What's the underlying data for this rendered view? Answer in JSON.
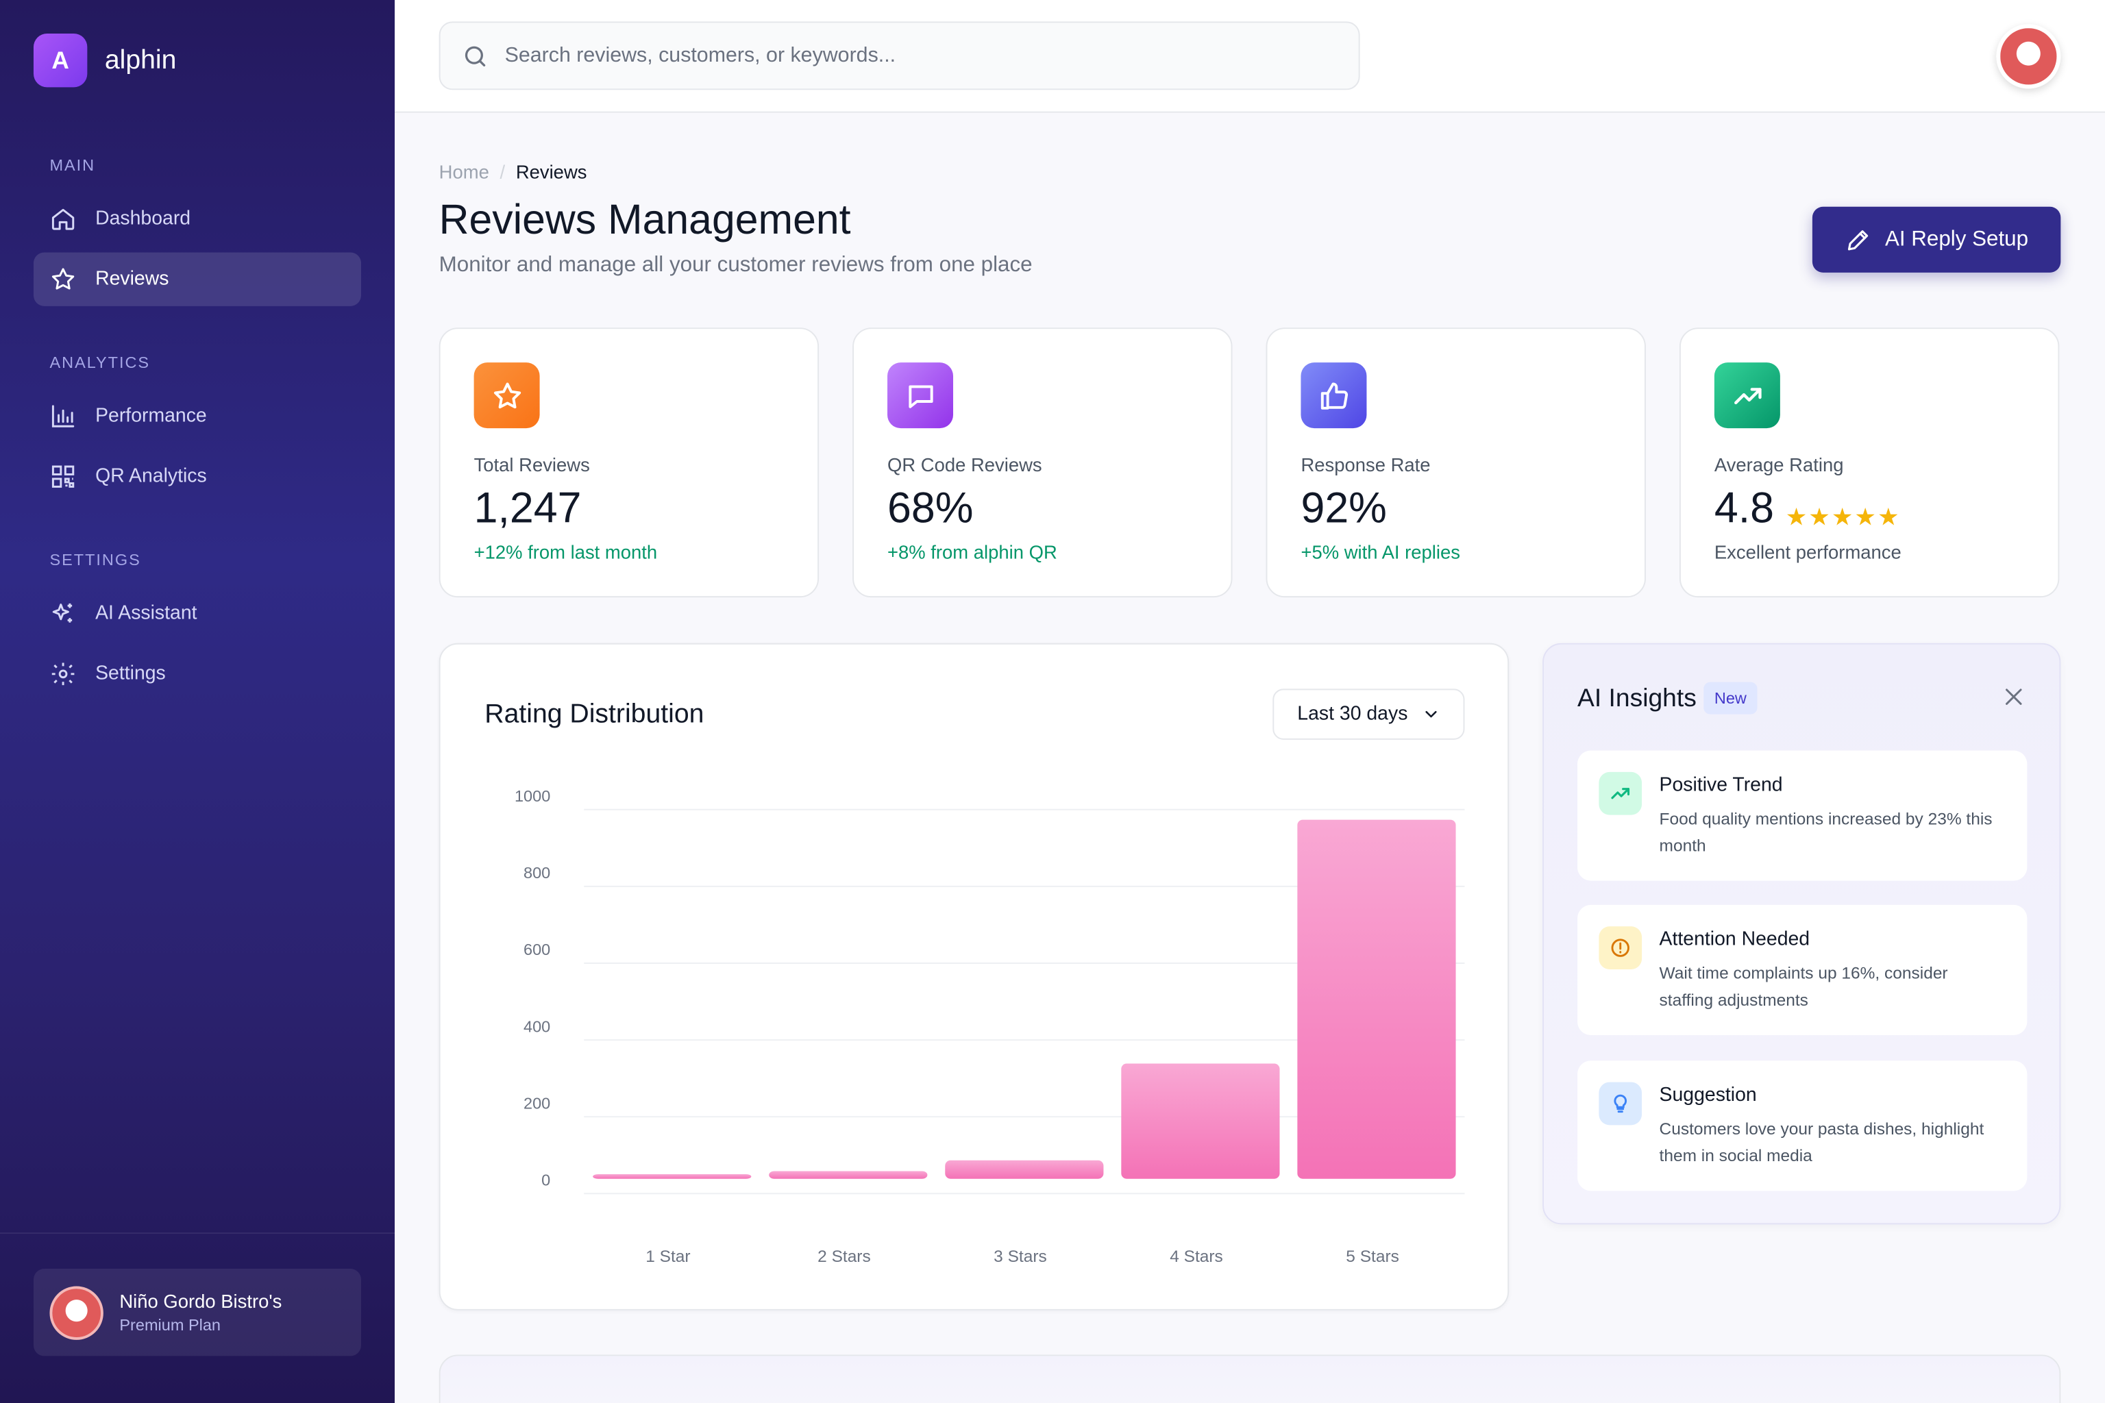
{
  "brand": {
    "letter": "A",
    "name": "alphin"
  },
  "sidebar": {
    "sections": [
      {
        "label": "MAIN"
      },
      {
        "label": "ANALYTICS"
      },
      {
        "label": "SETTINGS"
      }
    ],
    "items": [
      {
        "label": "Dashboard",
        "icon": "home-icon"
      },
      {
        "label": "Reviews",
        "icon": "star-icon",
        "active": true
      },
      {
        "label": "Performance",
        "icon": "bar-chart-icon"
      },
      {
        "label": "QR Analytics",
        "icon": "qr-code-icon"
      },
      {
        "label": "AI Assistant",
        "icon": "sparkle-icon"
      },
      {
        "label": "Settings",
        "icon": "gear-icon"
      }
    ],
    "account": {
      "name": "Niño Gordo Bistro's",
      "plan": "Premium Plan"
    }
  },
  "search": {
    "placeholder": "Search reviews, customers, or keywords..."
  },
  "breadcrumb": {
    "home": "Home",
    "separator": "/",
    "current": "Reviews"
  },
  "page": {
    "title": "Reviews Management",
    "subtitle": "Monitor and manage all your customer reviews from one place",
    "primary_button": "AI Reply Setup"
  },
  "stats": [
    {
      "label": "Total Reviews",
      "value": "1,247",
      "note": "+12% from last month",
      "icon": "star-icon",
      "color": "#f97316"
    },
    {
      "label": "QR Code Reviews",
      "value": "68%",
      "note": "+8% from alphin QR",
      "icon": "chat-bubble-icon",
      "color": "#a855f7"
    },
    {
      "label": "Response Rate",
      "value": "92%",
      "note": "+5% with AI replies",
      "icon": "thumbs-up-icon",
      "color": "#6366f1"
    },
    {
      "label": "Average Rating",
      "value": "4.8",
      "note": "Excellent performance",
      "icon": "trending-up-icon",
      "color": "#10b981",
      "stars": "★★★★★"
    }
  ],
  "chart": {
    "title": "Rating Distribution",
    "range_label": "Last 30 days"
  },
  "chart_data": {
    "type": "bar",
    "title": "Rating Distribution",
    "categories": [
      "1 Star",
      "2 Stars",
      "3 Stars",
      "4 Stars",
      "5 Stars"
    ],
    "values": [
      12,
      20,
      48,
      300,
      935
    ],
    "ylim": [
      0,
      1000
    ],
    "yticks": [
      0,
      200,
      400,
      600,
      800,
      1000
    ],
    "ytick_labels": [
      "0",
      "200",
      "400",
      "600",
      "800",
      "1000"
    ],
    "grid": true,
    "bar_color": "#f472b6"
  },
  "insights": {
    "title": "AI Insights",
    "badge": "New",
    "items": [
      {
        "title": "Positive Trend",
        "text": "Food quality mentions increased by 23% this month",
        "icon": "trending-up-icon",
        "color": "#10b981"
      },
      {
        "title": "Attention Needed",
        "text": "Wait time complaints up 16%, consider staffing adjustments",
        "icon": "alert-circle-icon",
        "color": "#d97706"
      },
      {
        "title": "Suggestion",
        "text": "Customers love your pasta dishes, highlight them in social media",
        "icon": "lightbulb-icon",
        "color": "#3b82f6"
      }
    ]
  }
}
